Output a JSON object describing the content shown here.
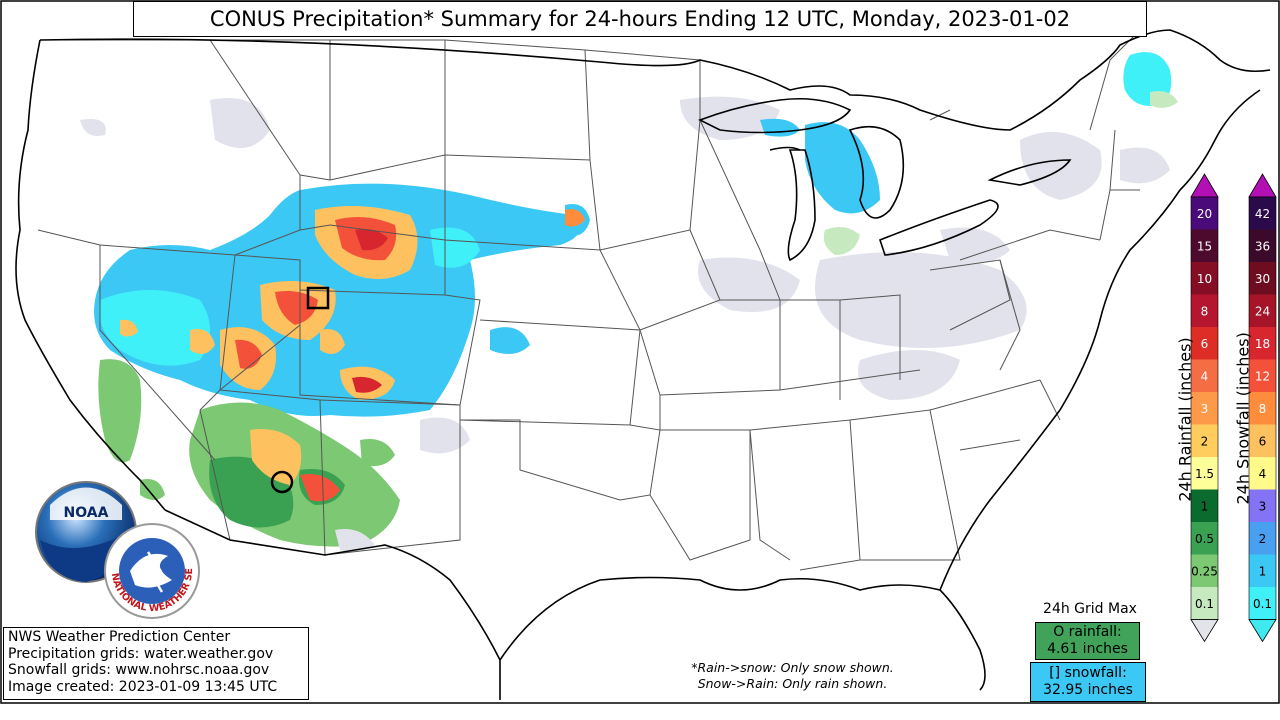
{
  "title": "CONUS Precipitation* Summary for 24-hours Ending 12 UTC, Monday, 2023-01-02",
  "info": {
    "line1": "NWS Weather Prediction Center",
    "line2": "Precipitation grids: water.weather.gov",
    "line3": "Snowfall grids: www.nohrsc.noaa.gov",
    "line4": "Image created: 2023-01-09 13:45 UTC"
  },
  "note": {
    "line1": "*Rain->snow: Only snow shown.",
    "line2": "Snow->Rain: Only rain shown."
  },
  "grid_max": {
    "title": "24h Grid Max",
    "rain_line1": "O rainfall:",
    "rain_line2": "4.61 inches",
    "snow_line1": "[] snowfall:",
    "snow_line2": "32.95 inches"
  },
  "logos": {
    "noaa_text": "NOAA",
    "nws_text": "NATIONAL WEATHER SERVICE"
  },
  "rain_colorbar": {
    "label": "24h Rainfall (inches)",
    "ticks": [
      "20",
      "15",
      "10",
      "8",
      "6",
      "4",
      "3",
      "2",
      "1.5",
      "1",
      "0.5",
      "0.25",
      "0.1"
    ],
    "colors": [
      "#4b0a7a",
      "#4d0a2c",
      "#850d24",
      "#b5152e",
      "#de2d26",
      "#f46d43",
      "#fd9a4a",
      "#fecd5e",
      "#ffff99",
      "#0b6b2e",
      "#3aa152",
      "#7dc873",
      "#c7e9c0"
    ],
    "arrow_top": "#b20fb4",
    "arrow_bottom": "#e3e3ea"
  },
  "snow_colorbar": {
    "label": "24h Snowfall (inches)",
    "ticks": [
      "42",
      "36",
      "30",
      "24",
      "18",
      "12",
      "8",
      "6",
      "4",
      "3",
      "2",
      "1",
      "0.1"
    ],
    "colors": [
      "#2a0a4a",
      "#3b0a2a",
      "#6e0d20",
      "#a51427",
      "#d7262e",
      "#f4513a",
      "#fd8d3c",
      "#fdc160",
      "#fffa8a",
      "#8473f5",
      "#4aa0f0",
      "#3cc8f5",
      "#40f0f8"
    ],
    "arrow_top": "#b20fb4",
    "arrow_bottom": "#40e8f0"
  }
}
